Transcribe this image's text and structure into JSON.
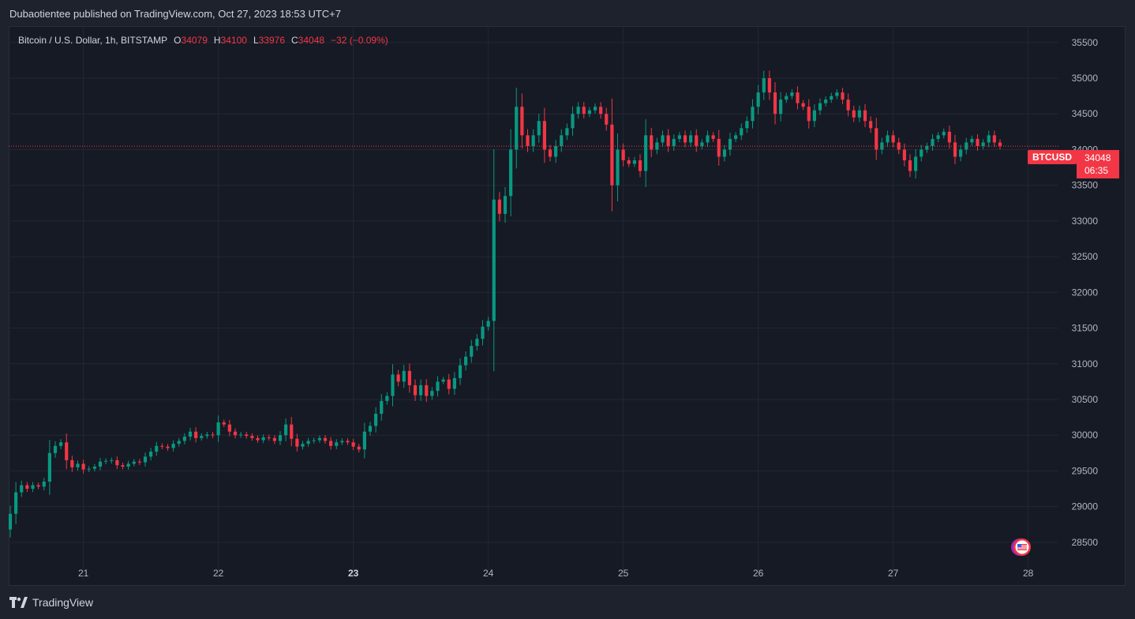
{
  "publisher": {
    "text": "Dubaotientee published on TradingView.com, Oct 27, 2023 18:53 UTC+7"
  },
  "legend": {
    "title": "Bitcoin / U.S. Dollar, 1h, BITSTAMP",
    "open_label": "O",
    "open": "34079",
    "high_label": "H",
    "high": "34100",
    "low_label": "L",
    "low": "33976",
    "close_label": "C",
    "close": "34048",
    "change": "−32 (−0.09%)"
  },
  "price_badge": {
    "symbol": "BTCUSD",
    "price": "34048",
    "countdown": "06:35"
  },
  "footer": {
    "brand": "TradingView"
  },
  "colors": {
    "up": "#089981",
    "down": "#f23645",
    "grid": "#232733",
    "background": "#161a25",
    "text": "#b2b5be",
    "last_price_line": "#f23645"
  },
  "icons": {
    "brand_logo": "tradingview-logo-icon",
    "event": "us-flag-event-icon"
  },
  "chart_data": {
    "type": "candlestick",
    "interval": "1h",
    "y_ticks": [
      35500,
      35000,
      34500,
      34000,
      33500,
      33000,
      32500,
      32000,
      31500,
      31000,
      30500,
      30000,
      29500,
      29000,
      28500
    ],
    "y_tick_labels": [
      "35500",
      "35000",
      "34500",
      "34000",
      "33500",
      "33000",
      "32500",
      "32000",
      "31500",
      "31000",
      "30500",
      "30000",
      "29500",
      "29000",
      "28500"
    ],
    "ylim": [
      27990,
      35730
    ],
    "x_tick_labels": [
      "21",
      "22",
      "23",
      "24",
      "25",
      "26",
      "27",
      "28"
    ],
    "x_tick_index": [
      13,
      37,
      61,
      85,
      109,
      133,
      157,
      181
    ],
    "last_price": 34048,
    "closes": [
      28900,
      29200,
      29300,
      29250,
      29300,
      29280,
      29350,
      29750,
      29850,
      29900,
      29650,
      29550,
      29600,
      29520,
      29530,
      29560,
      29630,
      29640,
      29650,
      29580,
      29560,
      29600,
      29630,
      29620,
      29700,
      29770,
      29850,
      29840,
      29820,
      29880,
      29920,
      29980,
      30050,
      29960,
      29990,
      30010,
      30000,
      30180,
      30150,
      30050,
      30000,
      30010,
      29990,
      29960,
      29930,
      29970,
      29960,
      29920,
      30000,
      30150,
      29950,
      29840,
      29880,
      29920,
      29930,
      29960,
      29920,
      29850,
      29900,
      29920,
      29900,
      29840,
      29800,
      30050,
      30130,
      30300,
      30480,
      30550,
      30850,
      30750,
      30900,
      30700,
      30560,
      30700,
      30550,
      30620,
      30750,
      30780,
      30650,
      30800,
      30980,
      31100,
      31250,
      31350,
      31520,
      31600,
      33300,
      33100,
      33350,
      34000,
      34600,
      34200,
      34050,
      34200,
      34400,
      34000,
      33900,
      34050,
      34200,
      34300,
      34500,
      34600,
      34500,
      34550,
      34600,
      34500,
      34350,
      33500,
      34000,
      33850,
      33800,
      33850,
      33700,
      34200,
      34000,
      34100,
      34200,
      34050,
      34150,
      34200,
      34100,
      34200,
      34050,
      34100,
      34200,
      34150,
      33900,
      34000,
      34150,
      34200,
      34300,
      34400,
      34600,
      34800,
      35000,
      34800,
      34500,
      34700,
      34750,
      34800,
      34650,
      34600,
      34400,
      34550,
      34650,
      34700,
      34750,
      34800,
      34700,
      34550,
      34450,
      34550,
      34400,
      34300,
      34000,
      34100,
      34200,
      34100,
      34000,
      33850,
      33700,
      33900,
      34000,
      34050,
      34150,
      34200,
      34250,
      34100,
      33900,
      34000,
      34100,
      34150,
      34050,
      34100,
      34200,
      34100,
      34048
    ]
  }
}
